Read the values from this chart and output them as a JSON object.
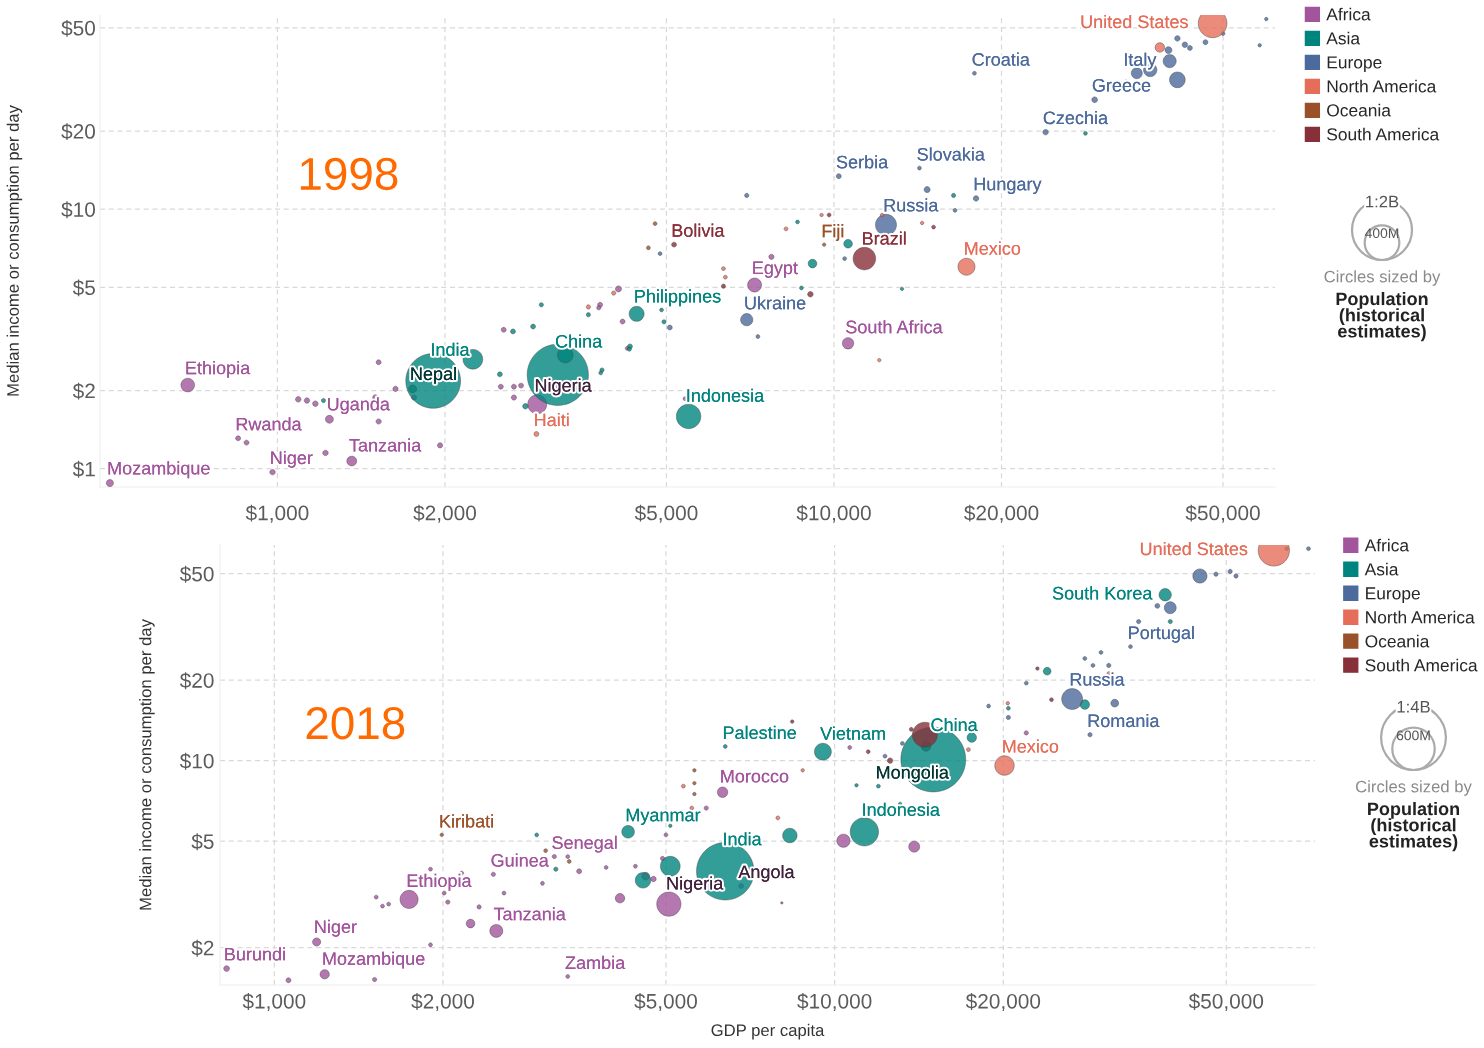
{
  "chart_data": [
    {
      "type": "bubble",
      "title": "1998",
      "ylabel": "Median income or consumption per day",
      "log": "xy",
      "grid": true,
      "legend": "right",
      "xlim": [
        480,
        62000
      ],
      "ylim": [
        0.85,
        56
      ],
      "xticks": [
        {
          "value": 1000,
          "label": "$1,000"
        },
        {
          "value": 2000,
          "label": "$2,000"
        },
        {
          "value": 5000,
          "label": "$5,000"
        },
        {
          "value": 10000,
          "label": "$10,000"
        },
        {
          "value": 20000,
          "label": "$20,000"
        },
        {
          "value": 50000,
          "label": "$50,000"
        }
      ],
      "yticks": [
        {
          "value": 1,
          "label": "$1"
        },
        {
          "value": 2,
          "label": "$2"
        },
        {
          "value": 5,
          "label": "$5"
        },
        {
          "value": 10,
          "label": "$10"
        },
        {
          "value": 20,
          "label": "$20"
        },
        {
          "value": 50,
          "label": "$50"
        }
      ],
      "size_legend": [
        {
          "value": 1200000000,
          "label": "1:2B"
        },
        {
          "value": 400000000,
          "label": "400M"
        }
      ],
      "series": [
        {
          "name": "Africa",
          "color": "#a2559c",
          "x": [
            500,
            690,
            850,
            880,
            980,
            1220,
            1360,
            1960,
            1090,
            1130,
            1170,
            1240,
            1500,
            1520,
            1520,
            1630,
            1760,
            2550,
            2520,
            2660,
            2660,
            2740,
            2930,
            4170,
            4250,
            3800,
            4100,
            3780,
            7720,
            7200,
            10600,
            5400
          ],
          "values": [
            0.88,
            2.1,
            1.31,
            1.26,
            0.97,
            1.15,
            1.07,
            1.23,
            1.85,
            1.83,
            1.78,
            1.55,
            1.88,
            1.52,
            2.57,
            2.03,
            1.88,
            3.43,
            2.07,
            1.88,
            2.07,
            2.09,
            1.77,
            3.69,
            2.91,
            4.28,
            4.93,
            4.17,
            6.55,
            5.1,
            3.04,
            1.86
          ],
          "sizes": [
            17000000,
            62000000,
            8000000,
            8000000,
            10000000,
            10000000,
            32000000,
            9000000,
            10000000,
            10000000,
            10000000,
            21000000,
            10000000,
            9000000,
            8000000,
            9000000,
            9000000,
            8000000,
            8000000,
            9000000,
            8000000,
            8000000,
            120000000,
            8000000,
            5000000,
            8000000,
            12000000,
            6000000,
            9000000,
            65000000,
            43000000,
            5000000
          ]
        },
        {
          "name": "Asia",
          "color": "#00847e",
          "x": [
            1905,
            2245,
            1750,
            1210,
            2510,
            2650,
            2880,
            2980,
            3190,
            3290,
            2790,
            3620,
            3830,
            4300,
            4420,
            4900,
            4950,
            3810,
            4290,
            5480,
            8600,
            9150,
            10600,
            8740,
            13250,
            16400,
            28300
          ],
          "values": [
            2.18,
            2.64,
            2.03,
            1.83,
            2.31,
            3.38,
            3.53,
            4.28,
            2.3,
            2.74,
            1.74,
            3.92,
            2.4,
            2.96,
            3.95,
            4.09,
            3.68,
            2.34,
            2.89,
            1.59,
            8.93,
            6.17,
            7.36,
            4.97,
            4.93,
            11.3,
            19.6
          ],
          "sizes": [
            1000000000,
            130000000,
            20000000,
            6000000,
            8000000,
            8000000,
            8000000,
            6000000,
            1250000000,
            80000000,
            10000000,
            6000000,
            6000000,
            8000000,
            75000000,
            5000000,
            6000000,
            5000000,
            6000000,
            200000000,
            5000000,
            25000000,
            25000000,
            5000000,
            4000000,
            6000000,
            5000000
          ]
        },
        {
          "name": "Europe",
          "color": "#4c6a9c",
          "x": [
            5070,
            4870,
            6970,
            6970,
            7300,
            10450,
            10200,
            14240,
            14700,
            12400,
            16500,
            18000,
            17880,
            24000,
            29400,
            35000,
            37000,
            40100,
            41400,
            39900,
            43600,
            46500,
            50000,
            58200,
            59800,
            41400,
            42700
          ],
          "values": [
            3.5,
            6.74,
            11.3,
            3.75,
            3.23,
            6.45,
            13.4,
            14.4,
            11.9,
            8.7,
            9.9,
            11.0,
            33.4,
            19.8,
            26.4,
            33.4,
            34.4,
            37.2,
            31.5,
            41.0,
            41.8,
            44.0,
            47.5,
            42.8,
            54,
            45.5,
            43.0
          ],
          "sizes": [
            8000000,
            5000000,
            6000000,
            50000000,
            5000000,
            5000000,
            8000000,
            5000000,
            12000000,
            147000000,
            5000000,
            10000000,
            5000000,
            10000000,
            11000000,
            40000000,
            59000000,
            57000000,
            82000000,
            16000000,
            8000000,
            8000000,
            5000000,
            4000000,
            4000000,
            10000000,
            10000000
          ]
        },
        {
          "name": "North America",
          "color": "#e56e5a",
          "x": [
            2920,
            3620,
            4020,
            6330,
            6380,
            8200,
            9500,
            12200,
            14400,
            12060,
            17300,
            47900,
            38500
          ],
          "values": [
            1.36,
            4.2,
            4.75,
            5.9,
            5.47,
            8.4,
            9.5,
            9.5,
            8.85,
            2.62,
            6.0,
            52.0,
            42.0
          ],
          "sizes": [
            8000000,
            6000000,
            6000000,
            5000000,
            5000000,
            5000000,
            4000000,
            4000000,
            4000000,
            4000000,
            97000000,
            275000000,
            30000000
          ]
        },
        {
          "name": "Oceania",
          "color": "#9a5129",
          "x": [
            4770,
            4640,
            9600,
            33500
          ],
          "values": [
            8.8,
            7.1,
            7.3,
            30.9
          ],
          "sizes": [
            5000000,
            5000000,
            4000000,
            5000000
          ]
        },
        {
          "name": "South America",
          "color": "#883039",
          "x": [
            5160,
            6330,
            9070,
            9800,
            15100,
            11340
          ],
          "values": [
            7.3,
            5.05,
            4.7,
            9.5,
            8.53,
            6.45
          ],
          "sizes": [
            8000000,
            6000000,
            10000000,
            5000000,
            5000000,
            170000000
          ]
        }
      ],
      "annotations": [
        {
          "text": "United States",
          "x": 47900,
          "y": 52.0
        },
        {
          "text": "Croatia",
          "x": 17880,
          "y": 33.4
        },
        {
          "text": "Italy",
          "x": 40100,
          "y": 37.2
        },
        {
          "text": "Greece",
          "x": 29400,
          "y": 26.4
        },
        {
          "text": "Czechia",
          "x": 24000,
          "y": 19.8
        },
        {
          "text": "Serbia",
          "x": 10200,
          "y": 13.4
        },
        {
          "text": "Slovakia",
          "x": 14240,
          "y": 14.4
        },
        {
          "text": "Hungary",
          "x": 18000,
          "y": 11.0
        },
        {
          "text": "Russia",
          "x": 12400,
          "y": 8.7
        },
        {
          "text": "Bolivia",
          "x": 5160,
          "y": 7.3
        },
        {
          "text": "Fiji",
          "x": 9600,
          "y": 7.3
        },
        {
          "text": "Brazil",
          "x": 11340,
          "y": 6.45
        },
        {
          "text": "Mexico",
          "x": 17300,
          "y": 6.0
        },
        {
          "text": "Egypt",
          "x": 7200,
          "y": 5.1
        },
        {
          "text": "Philippines",
          "x": 4420,
          "y": 3.95
        },
        {
          "text": "Ukraine",
          "x": 6970,
          "y": 3.75
        },
        {
          "text": "South Africa",
          "x": 10600,
          "y": 3.04
        },
        {
          "text": "India",
          "x": 1905,
          "y": 2.18
        },
        {
          "text": "China",
          "x": 3190,
          "y": 2.3
        },
        {
          "text": "Ethiopia",
          "x": 690,
          "y": 2.1
        },
        {
          "text": "Nepal",
          "x": 1750,
          "y": 2.03
        },
        {
          "text": "Nigeria",
          "x": 2930,
          "y": 1.77
        },
        {
          "text": "Indonesia",
          "x": 5480,
          "y": 1.59
        },
        {
          "text": "Uganda",
          "x": 1240,
          "y": 1.55
        },
        {
          "text": "Rwanda",
          "x": 850,
          "y": 1.31
        },
        {
          "text": "Haiti",
          "x": 2920,
          "y": 1.36
        },
        {
          "text": "Tanzania",
          "x": 1360,
          "y": 1.07
        },
        {
          "text": "Niger",
          "x": 980,
          "y": 0.97
        },
        {
          "text": "Mozambique",
          "x": 500,
          "y": 0.88
        },
        "Circles sized by",
        "Population (historical estimates)"
      ]
    },
    {
      "type": "bubble",
      "title": "2018",
      "ylabel": "Median income or consumption per day",
      "xlabel": "GDP per capita",
      "log": "xy",
      "grid": true,
      "legend": "right",
      "xlim": [
        800,
        72000
      ],
      "ylim": [
        1.45,
        64
      ],
      "xticks": [
        {
          "value": 1000,
          "label": "$1,000"
        },
        {
          "value": 2000,
          "label": "$2,000"
        },
        {
          "value": 5000,
          "label": "$5,000"
        },
        {
          "value": 10000,
          "label": "$10,000"
        },
        {
          "value": 20000,
          "label": "$20,000"
        },
        {
          "value": 50000,
          "label": "$50,000"
        }
      ],
      "yticks": [
        {
          "value": 2,
          "label": "$2"
        },
        {
          "value": 5,
          "label": "$5"
        },
        {
          "value": 10,
          "label": "$10"
        },
        {
          "value": 20,
          "label": "$20"
        },
        {
          "value": 50,
          "label": "$50"
        }
      ],
      "size_legend": [
        {
          "value": 1400000000,
          "label": "1:4B"
        },
        {
          "value": 600000000,
          "label": "600M"
        }
      ],
      "series": [
        {
          "name": "Africa",
          "color": "#a2559c",
          "x": [
            822,
            1060,
            1190,
            1230,
            1510,
            1900,
            1520,
            1560,
            1600,
            1740,
            1900,
            2160,
            2010,
            2040,
            2320,
            2240,
            2490,
            2460,
            2570,
            3010,
            3160,
            3340,
            3500,
            3910,
            4140,
            3340,
            4410,
            4930,
            5000,
            4600,
            4750,
            5060,
            5900,
            6310,
            6810,
            10640,
            21980,
            10370,
            13870,
            8050
          ],
          "values": [
            1.67,
            1.51,
            2.1,
            1.59,
            1.52,
            2.05,
            3.09,
            2.86,
            2.91,
            3.03,
            3.93,
            3.8,
            3.2,
            2.96,
            2.84,
            2.46,
            2.31,
            3.76,
            3.2,
            3.48,
            4.38,
            4.38,
            3.86,
            3.99,
            3.06,
            1.56,
            4.03,
            4.31,
            5.28,
            3.7,
            3.61,
            2.91,
            6.65,
            7.62,
            3.4,
            11.2,
            12.7,
            5.02,
            4.77,
            2.94
          ],
          "sizes": [
            11000000,
            8000000,
            22000000,
            29000000,
            6000000,
            5000000,
            5000000,
            5000000,
            5000000,
            109000000,
            5000000,
            5000000,
            5000000,
            6000000,
            6000000,
            25000000,
            56000000,
            6000000,
            5000000,
            5000000,
            6000000,
            5000000,
            8000000,
            5000000,
            30000000,
            5000000,
            5000000,
            6000000,
            5000000,
            20000000,
            10000000,
            196000000,
            6000000,
            36000000,
            8000000,
            5000000,
            6000000,
            58000000,
            40000000,
            2000000
          ]
        },
        {
          "name": "Asia",
          "color": "#00847e",
          "x": [
            2940,
            3180,
            4280,
            5090,
            4550,
            5090,
            6380,
            6380,
            9530,
            10940,
            11970,
            8320,
            11300,
            15000,
            14560,
            17570,
            20420,
            23950,
            27960,
            13090,
            39720,
            38900
          ],
          "values": [
            5.28,
            3.93,
            5.42,
            5.71,
            3.57,
            4.03,
            3.86,
            11.3,
            10.8,
            8.09,
            8.03,
            5.25,
            5.42,
            10.1,
            11.3,
            12.2,
            15.7,
            21.6,
            16.2,
            6.89,
            33.1,
            41.7
          ],
          "sizes": [
            5000000,
            6000000,
            53000000,
            4000000,
            80000000,
            130000000,
            1100000000,
            5000000,
            95000000,
            4000000,
            5000000,
            70000000,
            267000000,
            1400000000,
            30000000,
            30000000,
            5000000,
            20000000,
            30000000,
            4000000,
            6000000,
            51000000
          ]
        },
        {
          "name": "Europe",
          "color": "#4c6a9c",
          "x": [
            13210,
            12300,
            18830,
            20420,
            21980,
            26540,
            27960,
            28910,
            29880,
            30850,
            31620,
            28560,
            33730,
            34880,
            37670,
            39720,
            44870,
            47930,
            50800,
            52040,
            64100,
            70100
          ],
          "values": [
            11.6,
            10.4,
            16.0,
            14.5,
            19.5,
            17.0,
            24.1,
            22.7,
            25.4,
            22.7,
            16.4,
            12.5,
            26.7,
            33.1,
            37.9,
            37.3,
            49.0,
            49.8,
            51.0,
            49.0,
            62.0,
            62.0
          ],
          "sizes": [
            5000000,
            5000000,
            5000000,
            6000000,
            5000000,
            145000000,
            5000000,
            5000000,
            5000000,
            6000000,
            20000000,
            6000000,
            5000000,
            6000000,
            8000000,
            47000000,
            67000000,
            6000000,
            6000000,
            6000000,
            5000000,
            5000000
          ]
        },
        {
          "name": "North America",
          "color": "#e56e5a",
          "x": [
            5370,
            5560,
            8770,
            7920,
            17330,
            20370,
            30850,
            20100,
            60800
          ],
          "values": [
            8.03,
            6.65,
            9.2,
            6.11,
            11.0,
            16.4,
            21.2,
            9.59,
            61.1
          ],
          "sizes": [
            5000000,
            5000000,
            4000000,
            5000000,
            5000000,
            4000000,
            4000000,
            126000000,
            327000000
          ]
        },
        {
          "name": "Oceania",
          "color": "#9a5129",
          "x": [
            1990,
            3050,
            3360,
            5620,
            5620,
            5620
          ],
          "values": [
            5.28,
            4.61,
            4.2,
            9.2,
            8.24,
            7.5
          ],
          "sizes": [
            4000000,
            5000000,
            5000000,
            4000000,
            4000000,
            4000000
          ]
        },
        {
          "name": "South America",
          "color": "#883039",
          "x": [
            8400,
            13700,
            11480,
            12560,
            14490,
            23010,
            24380
          ],
          "values": [
            14.0,
            13.1,
            10.8,
            10.0,
            12.5,
            22.1,
            16.9
          ],
          "sizes": [
            4000000,
            5000000,
            5000000,
            10000000,
            209000000,
            4000000,
            5000000
          ]
        }
      ],
      "annotations": [
        {
          "text": "United States",
          "x": 60800,
          "y": 61.1
        },
        {
          "text": "South Korea",
          "x": 38900,
          "y": 41.7
        },
        {
          "text": "Portugal",
          "x": 33730,
          "y": 26.7
        },
        {
          "text": "Russia",
          "x": 26540,
          "y": 17.0
        },
        {
          "text": "Romania",
          "x": 28560,
          "y": 12.5
        },
        {
          "text": "China",
          "x": 15000,
          "y": 10.1
        },
        {
          "text": "Vietnam",
          "x": 9530,
          "y": 10.8
        },
        {
          "text": "Palestine",
          "x": 6380,
          "y": 11.3
        },
        {
          "text": "Mongolia",
          "x": 11970,
          "y": 8.03
        },
        {
          "text": "Mexico",
          "x": 20100,
          "y": 9.59
        },
        {
          "text": "Morocco",
          "x": 6310,
          "y": 7.62
        },
        {
          "text": "Indonesia",
          "x": 11300,
          "y": 5.42
        },
        {
          "text": "Kiribati",
          "x": 1990,
          "y": 5.28
        },
        {
          "text": "Myanmar",
          "x": 4280,
          "y": 5.42
        },
        {
          "text": "India",
          "x": 6380,
          "y": 3.86
        },
        {
          "text": "Senegal",
          "x": 3160,
          "y": 4.38
        },
        {
          "text": "Guinea",
          "x": 2460,
          "y": 3.76
        },
        {
          "text": "Ethiopia",
          "x": 1740,
          "y": 3.03
        },
        {
          "text": "Angola",
          "x": 6810,
          "y": 3.4
        },
        {
          "text": "Nigeria",
          "x": 5060,
          "y": 2.91
        },
        {
          "text": "Tanzania",
          "x": 2490,
          "y": 2.31
        },
        {
          "text": "Niger",
          "x": 1190,
          "y": 2.1
        },
        {
          "text": "Burundi",
          "x": 822,
          "y": 1.67
        },
        {
          "text": "Mozambique",
          "x": 1230,
          "y": 1.59
        },
        {
          "text": "Zambia",
          "x": 3340,
          "y": 1.56
        },
        "Circles sized by",
        "Population (historical estimates)"
      ]
    }
  ]
}
